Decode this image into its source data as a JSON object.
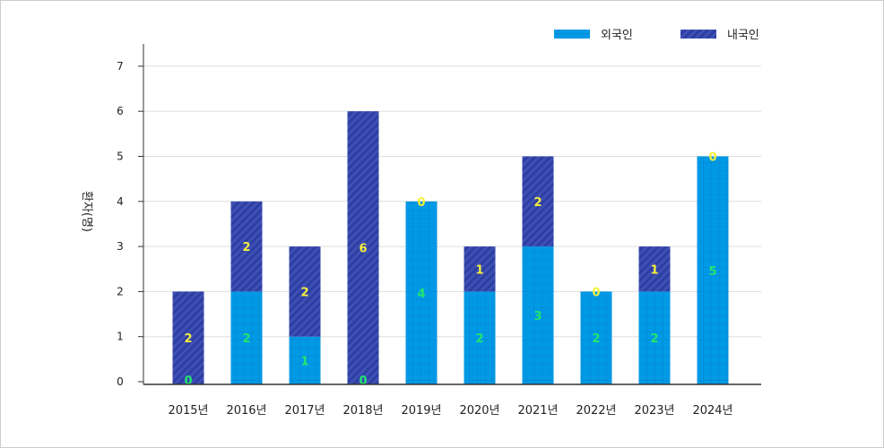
{
  "chart_data": {
    "type": "bar",
    "stacked": true,
    "categories": [
      "2015년",
      "2016년",
      "2017년",
      "2018년",
      "2019년",
      "2020년",
      "2021년",
      "2022년",
      "2023년",
      "2024년"
    ],
    "series": [
      {
        "name": "외국인",
        "values": [
          0,
          2,
          1,
          0,
          4,
          2,
          3,
          2,
          2,
          5
        ],
        "color": "#0099e6",
        "pattern": "grid",
        "label_color": "#22e66e"
      },
      {
        "name": "내국인",
        "values": [
          2,
          2,
          2,
          6,
          0,
          1,
          2,
          0,
          1,
          0
        ],
        "color": "#2d3ea3",
        "pattern": "diagonal-stripes",
        "label_color": "#f5f03a"
      }
    ],
    "ylabel": "환자(명)",
    "xlabel": "",
    "ylim": [
      0,
      7
    ],
    "yticks": [
      0,
      1,
      2,
      3,
      4,
      5,
      6,
      7
    ],
    "grid": true,
    "legend": "top-right"
  }
}
